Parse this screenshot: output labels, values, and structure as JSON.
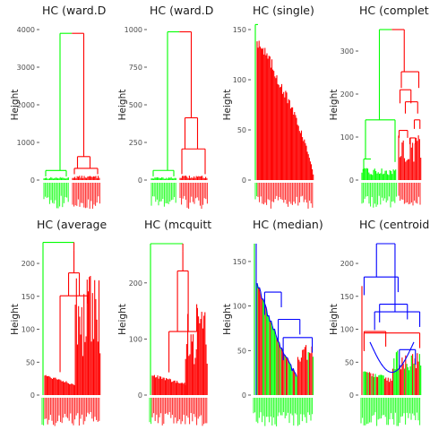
{
  "colors": {
    "green": "#00ff00",
    "red": "#ff0000",
    "blue": "#0000ff",
    "axis_text": "#4d4d4d"
  },
  "chart_data": [
    {
      "type": "dendrogram",
      "title": "HC (ward.D",
      "ylabel": "Height",
      "ylim": [
        0,
        4000
      ],
      "yticks": [
        0,
        1000,
        2000,
        3000,
        4000
      ],
      "clusters": 2,
      "merges": [
        {
          "left": "green cluster",
          "right": "red cluster",
          "height": 3900,
          "color": "green-red"
        }
      ]
    },
    {
      "type": "dendrogram",
      "title": "HC (ward.D",
      "ylabel": "Height",
      "ylim": [
        0,
        1000
      ],
      "yticks": [
        0,
        250,
        500,
        750,
        1000
      ],
      "clusters": 2,
      "merges": [
        {
          "left": "green cluster",
          "right": "red cluster",
          "height": 985,
          "color": "green-red"
        }
      ]
    },
    {
      "type": "dendrogram",
      "title": "HC (single)",
      "ylabel": "Height",
      "ylim": [
        0,
        150
      ],
      "yticks": [
        0,
        50,
        100,
        150
      ],
      "clusters": 2,
      "merges": [
        {
          "left": "green singleton",
          "right": "red chain",
          "height": 155,
          "color": "green-red"
        }
      ]
    },
    {
      "type": "dendrogram",
      "title": "HC (complet",
      "ylabel": "Height",
      "ylim": [
        0,
        350
      ],
      "yticks": [
        0,
        100,
        200,
        300
      ],
      "clusters": 2,
      "merges": [
        {
          "left": "green cluster",
          "right": "red cluster",
          "height": 350,
          "color": "green-red"
        }
      ]
    },
    {
      "type": "dendrogram",
      "title": "HC (average",
      "ylabel": "Height",
      "ylim": [
        0,
        230
      ],
      "yticks": [
        0,
        50,
        100,
        150,
        200
      ],
      "clusters": 2,
      "merges": [
        {
          "left": "green singleton",
          "right": "red cluster",
          "height": 232,
          "color": "green-red"
        }
      ]
    },
    {
      "type": "dendrogram",
      "title": "HC (mcquitt",
      "ylabel": "Height",
      "ylim": [
        0,
        270
      ],
      "yticks": [
        0,
        100,
        200
      ],
      "clusters": 2,
      "merges": [
        {
          "left": "green singleton",
          "right": "red cluster",
          "height": 270,
          "color": "green-red"
        }
      ]
    },
    {
      "type": "dendrogram",
      "title": "HC (median)",
      "ylabel": "Height",
      "ylim": [
        0,
        170
      ],
      "yticks": [
        0,
        50,
        100,
        150
      ],
      "clusters": 3,
      "merges": [
        {
          "left": "green",
          "right": "blue",
          "height": 170,
          "color": "green-blue"
        }
      ]
    },
    {
      "type": "dendrogram",
      "title": "HC (centroid",
      "ylabel": "Height",
      "ylim": [
        0,
        230
      ],
      "yticks": [
        0,
        50,
        100,
        150,
        200
      ],
      "clusters": 3,
      "merges": [
        {
          "left": "blue",
          "right": "blue",
          "height": 230,
          "color": "blue"
        }
      ]
    }
  ]
}
